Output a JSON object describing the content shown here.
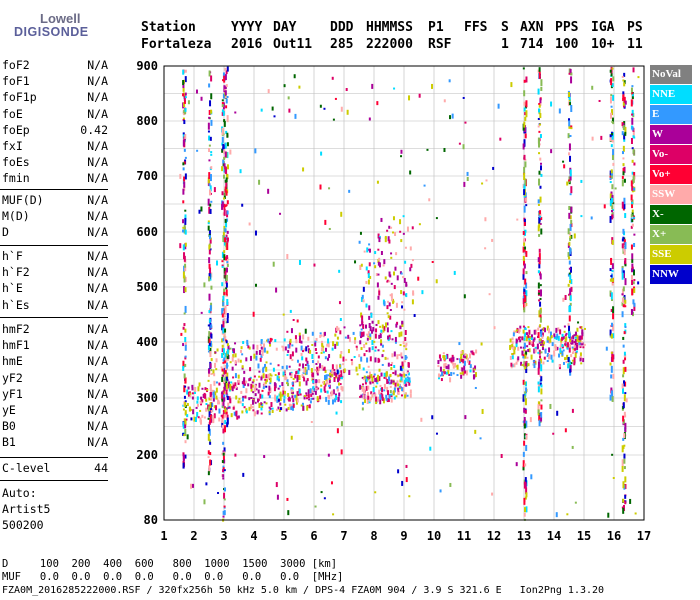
{
  "logo": {
    "line1": "Lowell",
    "line2": "DIGISONDE"
  },
  "header": {
    "labels": [
      "Station",
      "YYYY",
      "DAY",
      "DDD",
      "HHMMSS",
      "P1",
      "FFS",
      "S",
      "AXN",
      "PPS",
      "IGA",
      "PS"
    ],
    "values": [
      "Fortaleza",
      "2016",
      "Out11",
      "285",
      "222000",
      "RSF",
      "1",
      "714",
      "100",
      "10+",
      "11"
    ]
  },
  "params_group1": [
    {
      "name": "foF2",
      "value": "N/A"
    },
    {
      "name": "foF1",
      "value": "N/A"
    },
    {
      "name": "foF1p",
      "value": "N/A"
    },
    {
      "name": "foE",
      "value": "N/A"
    },
    {
      "name": "foEp",
      "value": "0.42"
    },
    {
      "name": "fxI",
      "value": "N/A"
    },
    {
      "name": "foEs",
      "value": "N/A"
    },
    {
      "name": "fmin",
      "value": "N/A"
    }
  ],
  "params_group2": [
    {
      "name": "MUF(D)",
      "value": "N/A"
    },
    {
      "name": "M(D)",
      "value": "N/A"
    },
    {
      "name": "D",
      "value": "N/A"
    }
  ],
  "params_group3": [
    {
      "name": "h`F",
      "value": "N/A"
    },
    {
      "name": "h`F2",
      "value": "N/A"
    },
    {
      "name": "h`E",
      "value": "N/A"
    },
    {
      "name": "h`Es",
      "value": "N/A"
    }
  ],
  "params_group4": [
    {
      "name": "hmF2",
      "value": "N/A"
    },
    {
      "name": "hmF1",
      "value": "N/A"
    },
    {
      "name": "hmE",
      "value": "N/A"
    },
    {
      "name": "yF2",
      "value": "N/A"
    },
    {
      "name": "yF1",
      "value": "N/A"
    },
    {
      "name": "yE",
      "value": "N/A"
    },
    {
      "name": "B0",
      "value": "N/A"
    },
    {
      "name": "B1",
      "value": "N/A"
    }
  ],
  "clevel": {
    "name": "C-level",
    "value": "44"
  },
  "auto": {
    "line1": "Auto:",
    "line2": "Artist5",
    "line3": "500200"
  },
  "legend": [
    {
      "label": "NoVal",
      "color": "#808080"
    },
    {
      "label": "NNE",
      "color": "#00ddff"
    },
    {
      "label": "E",
      "color": "#3399ff"
    },
    {
      "label": "W",
      "color": "#aa0099"
    },
    {
      "label": "Vo-",
      "color": "#dd0066"
    },
    {
      "label": "Vo+",
      "color": "#ff0033"
    },
    {
      "label": "SSW",
      "color": "#ffaaaa"
    },
    {
      "label": "X-",
      "color": "#006600"
    },
    {
      "label": "X+",
      "color": "#88bb55"
    },
    {
      "label": "SSE",
      "color": "#cccc00"
    },
    {
      "label": "NNW",
      "color": "#0000cc"
    }
  ],
  "footer": {
    "d_row": "D     100  200  400  600   800  1000  1500  3000 [km]",
    "muf_row": "MUF   0.0  0.0  0.0  0.0   0.0  0.0   0.0   0.0  [MHz]",
    "info_row": "FZA0M_2016285222000.RSF / 320fx256h 50 kHz 5.0 km / DPS-4 FZA0M 904 / 3.9 S 321.6 E   Ion2Png 1.3.20"
  },
  "chart_data": {
    "type": "scatter",
    "xlim": [
      1,
      17
    ],
    "ylim": [
      80,
      900
    ],
    "x_ticks": [
      1,
      2,
      3,
      4,
      5,
      6,
      7,
      8,
      9,
      10,
      11,
      12,
      13,
      14,
      15,
      16,
      17
    ],
    "y_ticks": [
      80,
      200,
      300,
      400,
      500,
      600,
      700,
      800,
      900
    ],
    "y_grid": [
      250,
      350,
      450,
      550,
      650,
      750,
      850
    ],
    "grid": true,
    "traces": [
      {
        "name": "F-trace low",
        "x_range": [
          1.6,
          7.0
        ],
        "h_start": 290,
        "h_end": 330,
        "spread": 35,
        "density": 420
      },
      {
        "name": "F-trace upper",
        "x_range": [
          2.5,
          9.2
        ],
        "h_start": 350,
        "h_end": 400,
        "spread": 45,
        "density": 350
      },
      {
        "name": "F-trace yellow",
        "x_range": [
          7.5,
          9.2
        ],
        "h_start": 315,
        "h_end": 330,
        "spread": 25,
        "density": 160
      },
      {
        "name": "trace 10-11",
        "x_range": [
          10.1,
          11.4
        ],
        "h_start": 360,
        "h_end": 365,
        "spread": 25,
        "density": 90
      },
      {
        "name": "trace 12-15",
        "x_range": [
          12.5,
          15.0
        ],
        "h_start": 395,
        "h_end": 395,
        "spread": 35,
        "density": 260
      },
      {
        "name": "spread upper",
        "x_range": [
          7.5,
          9.3
        ],
        "h_start": 480,
        "h_end": 560,
        "spread": 90,
        "density": 120
      }
    ],
    "vertical_lines": [
      {
        "x": 1.65,
        "h0": 180,
        "h1": 900
      },
      {
        "x": 2.5,
        "h0": 170,
        "h1": 900
      },
      {
        "x": 2.95,
        "h0": 80,
        "h1": 900
      },
      {
        "x": 3.05,
        "h0": 250,
        "h1": 900
      },
      {
        "x": 13.0,
        "h0": 80,
        "h1": 900
      },
      {
        "x": 13.5,
        "h0": 250,
        "h1": 900
      },
      {
        "x": 14.5,
        "h0": 350,
        "h1": 900
      },
      {
        "x": 15.9,
        "h0": 300,
        "h1": 900
      },
      {
        "x": 16.3,
        "h0": 100,
        "h1": 900
      },
      {
        "x": 16.6,
        "h0": 450,
        "h1": 900
      }
    ]
  }
}
